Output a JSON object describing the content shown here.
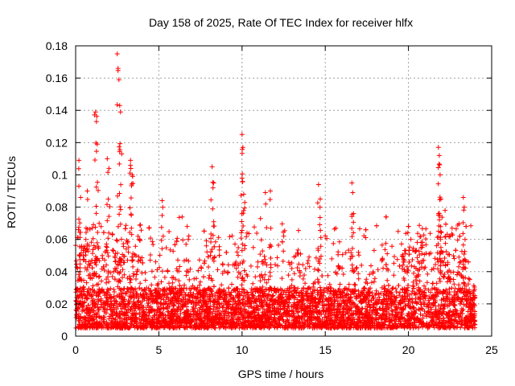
{
  "chart_data": {
    "type": "scatter",
    "title": "Day 158 of 2025, Rate Of TEC Index for receiver hlfx",
    "xlabel": "GPS time / hours",
    "ylabel": "ROTI / TECUs",
    "xlim": [
      0,
      25
    ],
    "ylim": [
      0,
      0.18
    ],
    "x_ticks": [
      0,
      5,
      10,
      15,
      20,
      25
    ],
    "x_tick_labels": [
      "0",
      "5",
      "10",
      "15",
      "20",
      "25"
    ],
    "y_ticks": [
      0,
      0.02,
      0.04,
      0.06,
      0.08,
      0.1,
      0.12,
      0.14,
      0.16,
      0.18
    ],
    "y_tick_labels": [
      "0",
      "0.02",
      "0.04",
      "0.06",
      "0.08",
      "0.1",
      "0.12",
      "0.14",
      "0.16",
      "0.18"
    ],
    "grid": true,
    "marker": "+",
    "color": "#ff0000",
    "series": [
      {
        "name": "ROTI",
        "data_range": [
          0,
          24
        ],
        "baseline_band": [
          0.005,
          0.03
        ],
        "outliers": [
          {
            "x": 0.2,
            "y": 0.109
          },
          {
            "x": 0.3,
            "y": 0.086
          },
          {
            "x": 0.7,
            "y": 0.09
          },
          {
            "x": 1.2,
            "y": 0.139
          },
          {
            "x": 1.25,
            "y": 0.133
          },
          {
            "x": 1.3,
            "y": 0.119
          },
          {
            "x": 1.9,
            "y": 0.11
          },
          {
            "x": 2.0,
            "y": 0.104
          },
          {
            "x": 2.5,
            "y": 0.175
          },
          {
            "x": 2.55,
            "y": 0.166
          },
          {
            "x": 2.6,
            "y": 0.159
          },
          {
            "x": 2.65,
            "y": 0.143
          },
          {
            "x": 2.7,
            "y": 0.139
          },
          {
            "x": 3.3,
            "y": 0.109
          },
          {
            "x": 3.4,
            "y": 0.1
          },
          {
            "x": 5.2,
            "y": 0.084
          },
          {
            "x": 6.7,
            "y": 0.068
          },
          {
            "x": 8.2,
            "y": 0.105
          },
          {
            "x": 8.3,
            "y": 0.095
          },
          {
            "x": 10.0,
            "y": 0.125
          },
          {
            "x": 10.05,
            "y": 0.117
          },
          {
            "x": 10.0,
            "y": 0.098
          },
          {
            "x": 10.1,
            "y": 0.088
          },
          {
            "x": 11.4,
            "y": 0.089
          },
          {
            "x": 11.7,
            "y": 0.09
          },
          {
            "x": 14.6,
            "y": 0.094
          },
          {
            "x": 14.7,
            "y": 0.085
          },
          {
            "x": 16.6,
            "y": 0.095
          },
          {
            "x": 16.65,
            "y": 0.089
          },
          {
            "x": 16.7,
            "y": 0.076
          },
          {
            "x": 21.8,
            "y": 0.117
          },
          {
            "x": 21.85,
            "y": 0.112
          },
          {
            "x": 21.9,
            "y": 0.1
          },
          {
            "x": 21.95,
            "y": 0.085
          },
          {
            "x": 22.2,
            "y": 0.078
          },
          {
            "x": 23.3,
            "y": 0.086
          },
          {
            "x": 23.35,
            "y": 0.08
          },
          {
            "x": 23.4,
            "y": 0.06
          }
        ]
      }
    ]
  }
}
